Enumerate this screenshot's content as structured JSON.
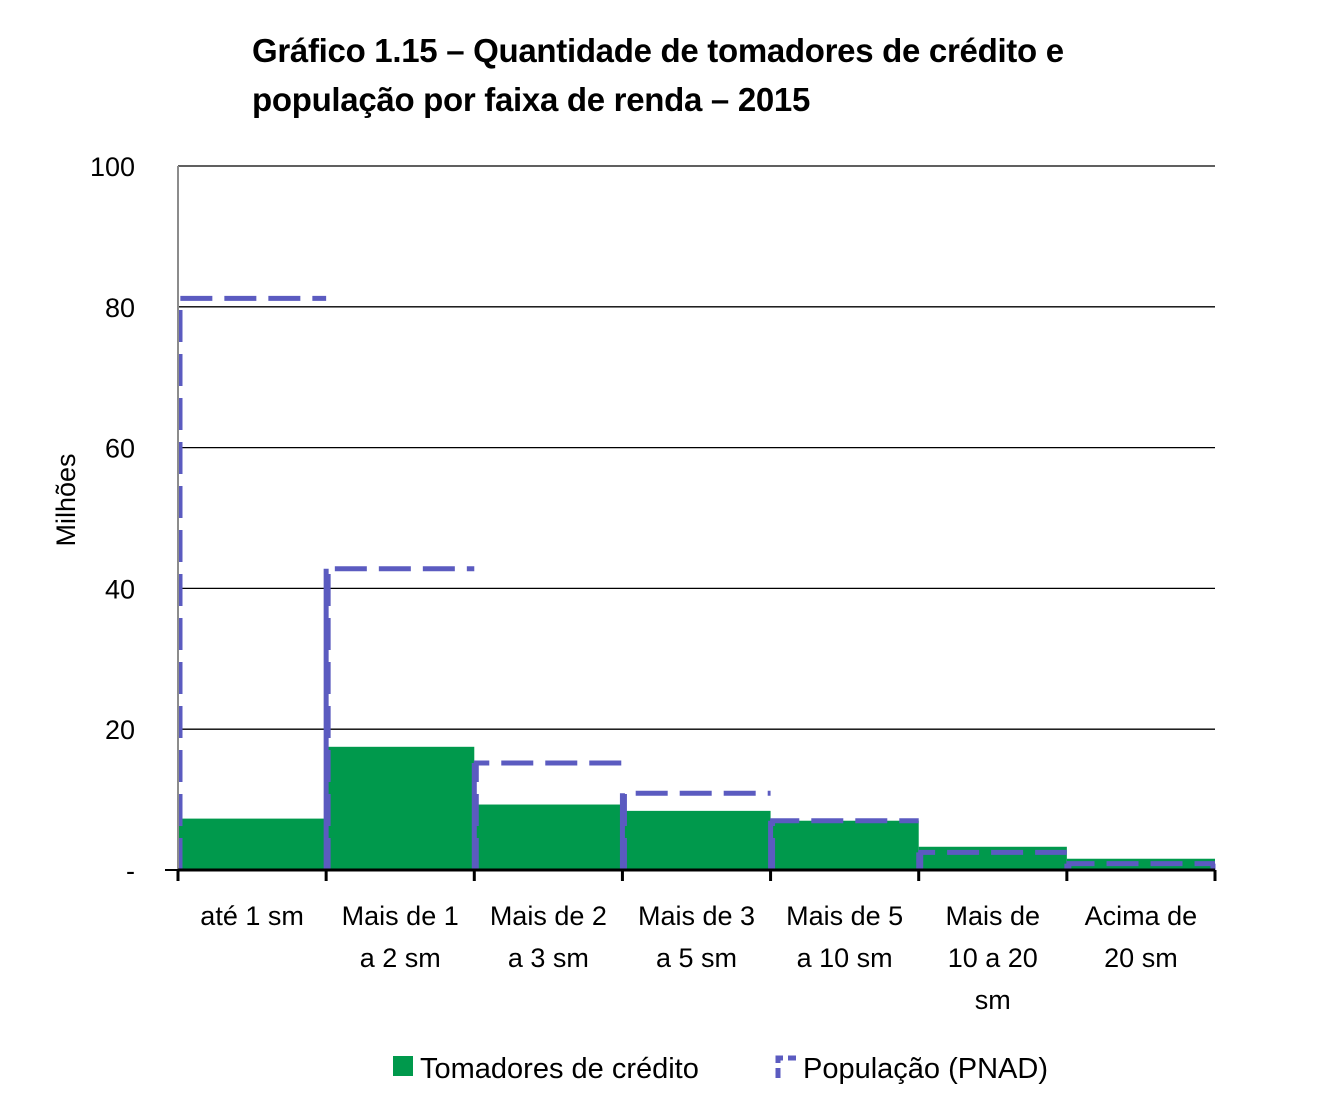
{
  "chart_data": {
    "type": "bar",
    "title_lines": [
      "Gráfico 1.15 – Quantidade de tomadores de crédito e",
      "população por faixa de renda – 2015"
    ],
    "ylabel": "Milhões",
    "xlabel": "",
    "ylim": [
      0,
      100
    ],
    "yticks": [
      {
        "value": 0,
        "label": "-"
      },
      {
        "value": 20,
        "label": "20"
      },
      {
        "value": 40,
        "label": "40"
      },
      {
        "value": 60,
        "label": "60"
      },
      {
        "value": 80,
        "label": "80"
      },
      {
        "value": 100,
        "label": "100"
      }
    ],
    "grid": true,
    "categories": [
      [
        "até 1 sm"
      ],
      [
        "Mais de 1",
        "a 2 sm"
      ],
      [
        "Mais de 2",
        "a 3 sm"
      ],
      [
        "Mais de 3",
        "a 5 sm"
      ],
      [
        "Mais de 5",
        "a 10 sm"
      ],
      [
        "Mais de",
        "10 a 20",
        "sm"
      ],
      [
        "Acima de",
        "20 sm"
      ]
    ],
    "series": [
      {
        "name": "Tomadores de crédito",
        "style": "filled-bar",
        "color": "#00994C",
        "values": [
          7.3,
          17.5,
          9.3,
          8.4,
          7.0,
          3.3,
          1.6
        ]
      },
      {
        "name": "População (PNAD)",
        "style": "dashed-step",
        "color": "#5B5BC0",
        "values": [
          81.2,
          42.8,
          15.2,
          10.9,
          7.0,
          2.5,
          0.9
        ]
      }
    ],
    "legend_position": "bottom"
  }
}
